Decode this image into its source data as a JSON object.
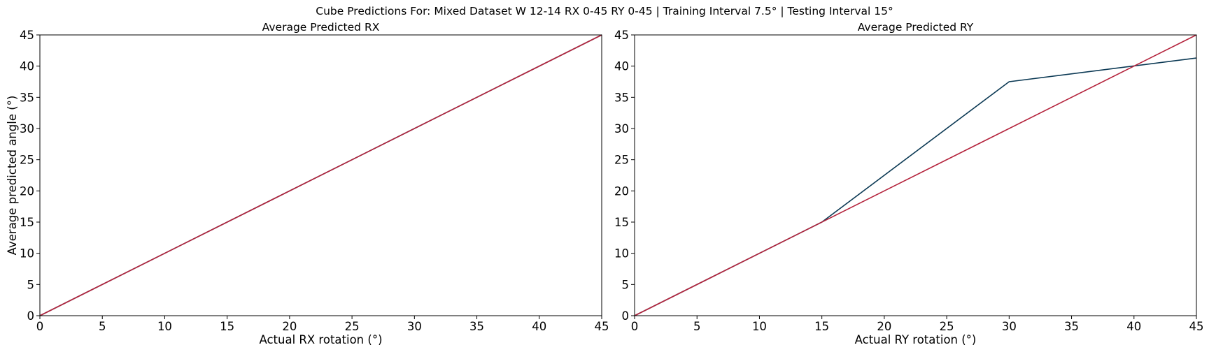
{
  "figure": {
    "title": "Cube Predictions For: Mixed Dataset W 12-14 RX 0-45 RY 0-45 | Training Interval 7.5° | Testing Interval 15°"
  },
  "chart_data": [
    {
      "type": "line",
      "title": "Average Predicted RX",
      "xlabel": "Actual RX rotation (°)",
      "ylabel": "Average predicted angle (°)",
      "xlim": [
        0,
        45
      ],
      "ylim": [
        0,
        45
      ],
      "xticks": [
        0,
        5,
        10,
        15,
        20,
        25,
        30,
        35,
        40,
        45
      ],
      "yticks": [
        0,
        5,
        10,
        15,
        20,
        25,
        30,
        35,
        40,
        45
      ],
      "grid": false,
      "series": [
        {
          "color": "#0b3954",
          "x": [
            0,
            15,
            30,
            45
          ],
          "y": [
            0,
            15,
            30,
            45
          ]
        },
        {
          "color": "#b4233c",
          "x": [
            0,
            45
          ],
          "y": [
            0,
            45
          ]
        }
      ]
    },
    {
      "type": "line",
      "title": "Average Predicted RY",
      "xlabel": "Actual RY rotation (°)",
      "ylabel": "",
      "xlim": [
        0,
        45
      ],
      "ylim": [
        0,
        45
      ],
      "xticks": [
        0,
        5,
        10,
        15,
        20,
        25,
        30,
        35,
        40,
        45
      ],
      "yticks": [
        0,
        5,
        10,
        15,
        20,
        25,
        30,
        35,
        40,
        45
      ],
      "grid": false,
      "series": [
        {
          "color": "#0b3954",
          "x": [
            0,
            15,
            30,
            45
          ],
          "y": [
            0,
            15,
            37.5,
            41.3
          ]
        },
        {
          "color": "#b4233c",
          "x": [
            0,
            45
          ],
          "y": [
            0,
            45
          ]
        }
      ]
    }
  ]
}
